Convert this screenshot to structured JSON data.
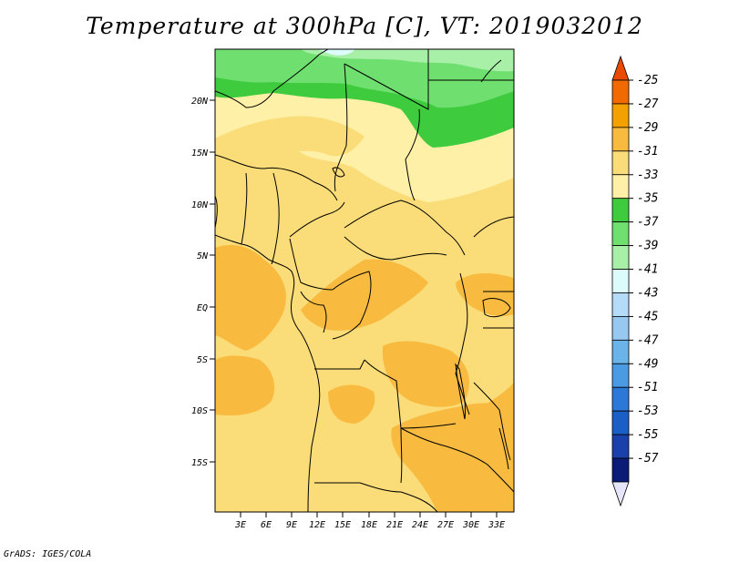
{
  "title": "Temperature at 300hPa [C], VT: 2019032012",
  "credit": "GrADS: IGES/COLA",
  "map": {
    "variable": "Temperature",
    "level": "300hPa",
    "units": "C",
    "valid_time": "2019032012",
    "lat_ticks": [
      "20N",
      "15N",
      "10N",
      "5N",
      "EQ",
      "5S",
      "10S",
      "15S"
    ],
    "lon_ticks": [
      "3E",
      "6E",
      "9E",
      "12E",
      "15E",
      "18E",
      "21E",
      "24E",
      "27E",
      "30E",
      "33E"
    ]
  },
  "colorbar": {
    "labels": [
      "-25",
      "-27",
      "-29",
      "-31",
      "-33",
      "-35",
      "-37",
      "-39",
      "-41",
      "-43",
      "-45",
      "-47",
      "-49",
      "-51",
      "-53",
      "-55",
      "-57"
    ],
    "colors": [
      "#e84a00",
      "#f06a00",
      "#f3a000",
      "#f8bb40",
      "#fadc78",
      "#fff0a8",
      "#3ecc3e",
      "#6fdf6f",
      "#a8efa8",
      "#dcfcfc",
      "#b4dcf8",
      "#96c8f0",
      "#6ab4ea",
      "#4a9ae4",
      "#2c78d8",
      "#1a5ec8",
      "#1a40ac",
      "#0a1c78",
      "#e6e6fa"
    ]
  }
}
